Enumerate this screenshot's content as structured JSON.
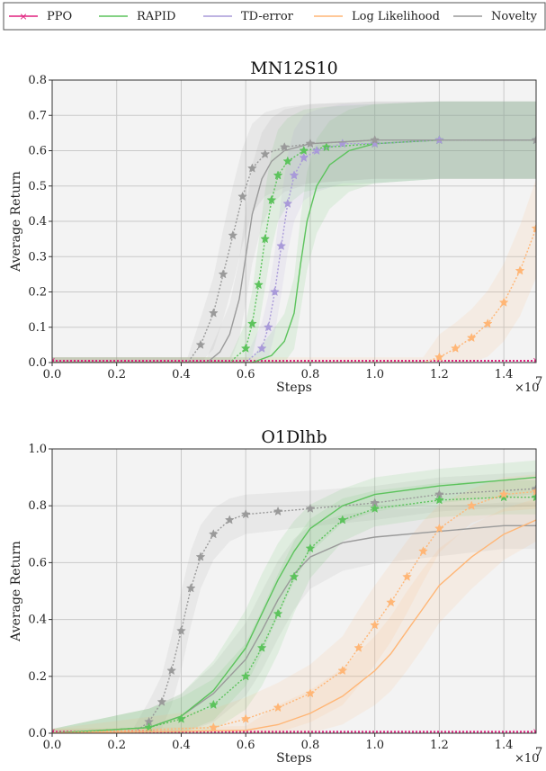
{
  "legend": {
    "position": "top",
    "entries": [
      {
        "name": "PPO",
        "color": "#e0207f",
        "marker": "x"
      },
      {
        "name": "RAPID",
        "color": "#5cc35c",
        "marker": "none"
      },
      {
        "name": "TD-error",
        "color": "#a99ad9",
        "marker": "none"
      },
      {
        "name": "Log Likelihood",
        "color": "#ffb676",
        "marker": "none"
      },
      {
        "name": "Novelty",
        "color": "#9a9a9a",
        "marker": "none"
      }
    ]
  },
  "chart_data": [
    {
      "type": "line",
      "title": "MN12S10",
      "xlabel": "Steps",
      "ylabel": "Average Return",
      "x_multiplier": "×10",
      "x_multiplier_exp": "7",
      "xlim": [
        0,
        1.5
      ],
      "ylim": [
        0,
        0.8
      ],
      "xticks": [
        0.0,
        0.2,
        0.4,
        0.6,
        0.8,
        1.0,
        1.2,
        1.4
      ],
      "xtick_labels": [
        "0.0",
        "0.2",
        "0.4",
        "0.6",
        "0.8",
        "1.0",
        "1.2",
        "1.4"
      ],
      "yticks": [
        0.0,
        0.1,
        0.2,
        0.3,
        0.4,
        0.5,
        0.6,
        0.7,
        0.8
      ],
      "ytick_labels": [
        "0.0",
        "0.1",
        "0.2",
        "0.3",
        "0.4",
        "0.5",
        "0.6",
        "0.7",
        "0.8"
      ],
      "grid": true,
      "series": [
        {
          "name": "PPO",
          "color": "#e0207f",
          "style": "dotted-x",
          "x": [
            0,
            1.5
          ],
          "y": [
            0.005,
            0.005
          ]
        },
        {
          "name": "RAPID",
          "color": "#5cc35c",
          "style": "solid",
          "x": [
            0,
            0.62,
            0.68,
            0.72,
            0.75,
            0.77,
            0.79,
            0.82,
            0.86,
            0.92,
            1.0,
            1.2,
            1.5
          ],
          "y": [
            0,
            0,
            0.02,
            0.06,
            0.14,
            0.28,
            0.4,
            0.5,
            0.56,
            0.6,
            0.62,
            0.63,
            0.63
          ]
        },
        {
          "name": "RAPID (starred)",
          "color": "#5cc35c",
          "style": "dotted-star",
          "x": [
            0,
            0.55,
            0.6,
            0.62,
            0.64,
            0.66,
            0.68,
            0.7,
            0.73,
            0.78,
            0.85,
            1.0,
            1.2,
            1.5
          ],
          "y": [
            0,
            0,
            0.04,
            0.11,
            0.22,
            0.35,
            0.46,
            0.53,
            0.57,
            0.6,
            0.61,
            0.62,
            0.63,
            0.63
          ]
        },
        {
          "name": "TD-error",
          "color": "#a99ad9",
          "style": "dotted-star",
          "x": [
            0,
            0.6,
            0.65,
            0.67,
            0.69,
            0.71,
            0.73,
            0.75,
            0.78,
            0.82,
            0.9,
            1.0,
            1.2,
            1.5
          ],
          "y": [
            0,
            0,
            0.04,
            0.1,
            0.2,
            0.33,
            0.45,
            0.53,
            0.58,
            0.6,
            0.62,
            0.62,
            0.63,
            0.63
          ]
        },
        {
          "name": "Novelty",
          "color": "#9a9a9a",
          "style": "solid",
          "x": [
            0,
            0.48,
            0.52,
            0.55,
            0.58,
            0.6,
            0.62,
            0.65,
            0.68,
            0.72,
            0.8,
            1.0,
            1.5
          ],
          "y": [
            0,
            0,
            0.03,
            0.08,
            0.18,
            0.3,
            0.42,
            0.52,
            0.57,
            0.6,
            0.62,
            0.63,
            0.63
          ]
        },
        {
          "name": "Novelty (starred)",
          "color": "#9a9a9a",
          "style": "dotted-star",
          "x": [
            0,
            0.42,
            0.46,
            0.5,
            0.53,
            0.56,
            0.59,
            0.62,
            0.66,
            0.72,
            0.8,
            1.0,
            1.5
          ],
          "y": [
            0,
            0,
            0.05,
            0.14,
            0.25,
            0.36,
            0.47,
            0.55,
            0.59,
            0.61,
            0.62,
            0.63,
            0.63
          ]
        },
        {
          "name": "Log Likelihood",
          "color": "#ffb676",
          "style": "dotted-star",
          "x": [
            0,
            1.15,
            1.2,
            1.25,
            1.3,
            1.35,
            1.4,
            1.45,
            1.5
          ],
          "y": [
            0,
            0,
            0.015,
            0.04,
            0.07,
            0.11,
            0.17,
            0.26,
            0.38
          ]
        }
      ]
    },
    {
      "type": "line",
      "title": "O1Dlhb",
      "xlabel": "Steps",
      "ylabel": "Average Return",
      "x_multiplier": "×10",
      "x_multiplier_exp": "7",
      "xlim": [
        0,
        1.5
      ],
      "ylim": [
        0,
        1.0
      ],
      "xticks": [
        0.0,
        0.2,
        0.4,
        0.6,
        0.8,
        1.0,
        1.2,
        1.4
      ],
      "xtick_labels": [
        "0.0",
        "0.2",
        "0.4",
        "0.6",
        "0.8",
        "1.0",
        "1.2",
        "1.4"
      ],
      "yticks": [
        0.0,
        0.2,
        0.4,
        0.6,
        0.8,
        1.0
      ],
      "ytick_labels": [
        "0.0",
        "0.2",
        "0.4",
        "0.6",
        "0.8",
        "1.0"
      ],
      "grid": true,
      "series": [
        {
          "name": "PPO",
          "color": "#e0207f",
          "style": "dotted-x",
          "x": [
            0,
            1.5
          ],
          "y": [
            0.005,
            0.005
          ]
        },
        {
          "name": "Novelty (starred)",
          "color": "#9a9a9a",
          "style": "dotted-star",
          "x": [
            0,
            0.25,
            0.3,
            0.34,
            0.37,
            0.4,
            0.43,
            0.46,
            0.5,
            0.55,
            0.6,
            0.7,
            0.8,
            1.0,
            1.2,
            1.5
          ],
          "y": [
            0,
            0,
            0.04,
            0.11,
            0.22,
            0.36,
            0.51,
            0.62,
            0.7,
            0.75,
            0.77,
            0.78,
            0.79,
            0.81,
            0.84,
            0.86
          ]
        },
        {
          "name": "Novelty",
          "color": "#9a9a9a",
          "style": "solid",
          "x": [
            0,
            0.3,
            0.4,
            0.5,
            0.6,
            0.65,
            0.7,
            0.75,
            0.8,
            0.9,
            1.0,
            1.2,
            1.4,
            1.5
          ],
          "y": [
            0,
            0.02,
            0.06,
            0.14,
            0.26,
            0.36,
            0.47,
            0.56,
            0.62,
            0.67,
            0.69,
            0.71,
            0.73,
            0.73
          ]
        },
        {
          "name": "RAPID",
          "color": "#5cc35c",
          "style": "solid",
          "x": [
            0,
            0.3,
            0.4,
            0.5,
            0.6,
            0.65,
            0.7,
            0.75,
            0.8,
            0.9,
            1.0,
            1.2,
            1.4,
            1.5
          ],
          "y": [
            0,
            0.02,
            0.06,
            0.15,
            0.3,
            0.42,
            0.54,
            0.64,
            0.72,
            0.8,
            0.84,
            0.87,
            0.89,
            0.9
          ]
        },
        {
          "name": "RAPID (starred)",
          "color": "#5cc35c",
          "style": "dotted-star",
          "x": [
            0,
            0.3,
            0.4,
            0.5,
            0.6,
            0.65,
            0.7,
            0.75,
            0.8,
            0.9,
            1.0,
            1.2,
            1.4,
            1.5
          ],
          "y": [
            0,
            0.02,
            0.05,
            0.1,
            0.2,
            0.3,
            0.42,
            0.55,
            0.65,
            0.75,
            0.79,
            0.82,
            0.83,
            0.83
          ]
        },
        {
          "name": "Log Likelihood (starred)",
          "color": "#ffb676",
          "style": "dotted-star",
          "x": [
            0,
            0.5,
            0.6,
            0.7,
            0.8,
            0.9,
            0.95,
            1.0,
            1.05,
            1.1,
            1.15,
            1.2,
            1.3,
            1.4,
            1.5
          ],
          "y": [
            0,
            0.02,
            0.05,
            0.09,
            0.14,
            0.22,
            0.3,
            0.38,
            0.46,
            0.55,
            0.64,
            0.72,
            0.8,
            0.84,
            0.85
          ]
        },
        {
          "name": "Log Likelihood",
          "color": "#ffb676",
          "style": "solid",
          "x": [
            0,
            0.6,
            0.7,
            0.8,
            0.9,
            1.0,
            1.05,
            1.1,
            1.15,
            1.2,
            1.3,
            1.4,
            1.5
          ],
          "y": [
            0,
            0.01,
            0.03,
            0.07,
            0.13,
            0.22,
            0.28,
            0.36,
            0.44,
            0.52,
            0.62,
            0.7,
            0.75
          ]
        }
      ]
    }
  ]
}
